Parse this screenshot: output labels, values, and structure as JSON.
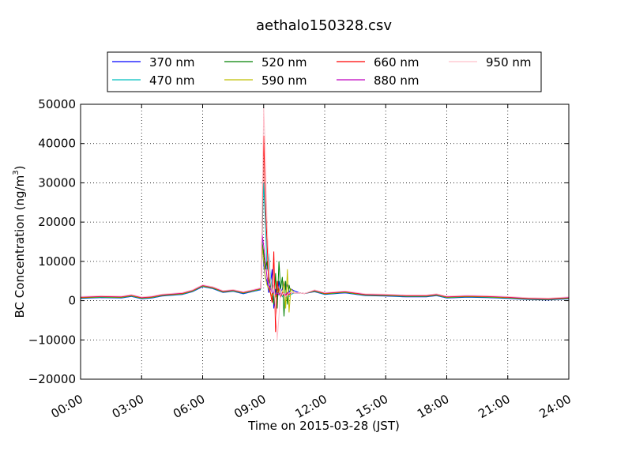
{
  "chart_data": {
    "type": "line",
    "title": "aethalo150328.csv",
    "xlabel": "Time on 2015-03-28 (JST)",
    "ylabel_main": "BC Concentration (ng/m",
    "ylabel_sup": "3",
    "ylabel_close": ")",
    "xlim": [
      "00:00",
      "24:00"
    ],
    "ylim": [
      -20000,
      50000
    ],
    "x_ticks": [
      "00:00",
      "03:00",
      "06:00",
      "09:00",
      "12:00",
      "15:00",
      "18:00",
      "21:00",
      "24:00"
    ],
    "y_ticks": [
      "50000",
      "40000",
      "30000",
      "20000",
      "10000",
      "0",
      "−10000",
      "−20000"
    ],
    "grid": true,
    "legend_placement": "top",
    "baseline_x": [
      "00:00",
      "01:00",
      "02:00",
      "02:30",
      "03:00",
      "03:30",
      "04:00",
      "05:00",
      "05:30",
      "06:00",
      "06:30",
      "07:00",
      "07:30",
      "08:00",
      "08:30",
      "08:50",
      "11:00",
      "11:30",
      "12:00",
      "12:30",
      "13:00",
      "14:00",
      "15:00",
      "16:00",
      "17:00",
      "17:30",
      "18:00",
      "19:00",
      "20:00",
      "21:00",
      "22:00",
      "23:00",
      "24:00"
    ],
    "baseline_y": [
      800,
      1000,
      900,
      1300,
      700,
      900,
      1400,
      1800,
      2500,
      3800,
      3300,
      2300,
      2600,
      2000,
      2600,
      3000,
      1800,
      2500,
      1800,
      2000,
      2200,
      1500,
      1400,
      1200,
      1200,
      1500,
      900,
      1100,
      1000,
      800,
      500,
      400,
      700
    ],
    "series": [
      {
        "name": "370 nm",
        "color": "#0000ff",
        "spike_x": [
          "08:52",
          "08:55",
          "09:00",
          "09:05",
          "09:10",
          "09:15",
          "09:20",
          "09:25",
          "09:30",
          "09:35",
          "09:40",
          "09:45",
          "09:50",
          "09:55",
          "10:00",
          "10:05",
          "10:10",
          "10:15",
          "10:20",
          "10:30",
          "10:45",
          "11:00"
        ],
        "spike_y": [
          3500,
          16000,
          9000,
          6000,
          5000,
          2000,
          4000,
          8000,
          -2000,
          3000,
          1000,
          5000,
          2000,
          3000,
          5000,
          3000,
          4000,
          2000,
          3000,
          2500,
          2000,
          1800
        ]
      },
      {
        "name": "470 nm",
        "color": "#00bfbf",
        "spike_x": [
          "08:52",
          "08:55",
          "09:00",
          "09:05",
          "09:10",
          "09:15",
          "09:20",
          "09:25",
          "09:30",
          "09:35",
          "09:40",
          "09:45",
          "09:50",
          "09:55",
          "10:00",
          "10:05",
          "10:10",
          "10:15",
          "10:20",
          "10:30",
          "10:45",
          "11:00"
        ],
        "spike_y": [
          3500,
          16000,
          30000,
          20000,
          8000,
          12000,
          6000,
          3000,
          500,
          2000,
          0,
          3000,
          2000,
          1000,
          1500,
          1000,
          2000,
          1000,
          1500,
          2000,
          2000,
          1800
        ]
      },
      {
        "name": "520 nm",
        "color": "#008000",
        "spike_x": [
          "08:52",
          "08:55",
          "09:00",
          "09:05",
          "09:10",
          "09:15",
          "09:20",
          "09:25",
          "09:30",
          "09:35",
          "09:40",
          "09:45",
          "09:50",
          "09:55",
          "10:00",
          "10:05",
          "10:10",
          "10:15",
          "10:20",
          "10:30",
          "10:45",
          "11:00"
        ],
        "spike_y": [
          3500,
          15000,
          12000,
          8000,
          10000,
          6000,
          4000,
          2000,
          -1000,
          7000,
          -2000,
          10000,
          3000,
          6000,
          -4000,
          5000,
          -1000,
          4000,
          2000,
          2000,
          2000,
          1800
        ]
      },
      {
        "name": "590 nm",
        "color": "#bfbf00",
        "spike_x": [
          "08:52",
          "08:55",
          "09:00",
          "09:05",
          "09:10",
          "09:15",
          "09:20",
          "09:25",
          "09:30",
          "09:35",
          "09:40",
          "09:45",
          "09:50",
          "09:55",
          "10:00",
          "10:05",
          "10:10",
          "10:15",
          "10:20",
          "10:30",
          "10:45",
          "11:00"
        ],
        "spike_y": [
          3500,
          14000,
          10000,
          6000,
          4000,
          3000,
          2000,
          1000,
          2000,
          1000,
          2000,
          3000,
          2000,
          1500,
          5000,
          -2000,
          8000,
          -3000,
          3000,
          2000,
          2000,
          1800
        ]
      },
      {
        "name": "660 nm",
        "color": "#ff0000",
        "spike_x": [
          "08:52",
          "08:55",
          "09:00",
          "09:05",
          "09:10",
          "09:15",
          "09:20",
          "09:25",
          "09:30",
          "09:35",
          "09:40",
          "09:45",
          "09:50",
          "09:55",
          "10:00",
          "10:05",
          "10:10",
          "10:15",
          "10:20",
          "10:30",
          "10:45",
          "11:00"
        ],
        "spike_y": [
          3500,
          17000,
          42000,
          25000,
          15000,
          4000,
          2000,
          -500,
          12500,
          -8000,
          5000,
          2000,
          1000,
          2000,
          1500,
          1000,
          2000,
          1500,
          2000,
          2000,
          2000,
          1800
        ]
      },
      {
        "name": "880 nm",
        "color": "#bf00bf",
        "spike_x": [
          "08:52",
          "08:55",
          "09:00",
          "09:05",
          "09:10",
          "09:15",
          "09:20",
          "09:25",
          "09:30",
          "09:35",
          "09:40",
          "09:45",
          "09:50",
          "09:55",
          "10:00",
          "10:05",
          "10:10",
          "10:15",
          "10:20",
          "10:30",
          "10:45",
          "11:00"
        ],
        "spike_y": [
          3500,
          17000,
          14000,
          10000,
          6000,
          4000,
          3000,
          2000,
          2000,
          1500,
          2000,
          1500,
          2000,
          1500,
          2000,
          1500,
          2000,
          2000,
          2000,
          2000,
          2000,
          1800
        ]
      },
      {
        "name": "950 nm",
        "color": "#ffc0cb",
        "spike_x": [
          "08:52",
          "08:55",
          "09:00",
          "09:05",
          "09:10",
          "09:15",
          "09:20",
          "09:25",
          "09:30",
          "09:35",
          "09:40",
          "09:45",
          "09:50",
          "09:55",
          "10:00",
          "10:05",
          "10:10",
          "10:15",
          "10:20",
          "10:30",
          "10:45",
          "11:00"
        ],
        "spike_y": [
          3500,
          20000,
          49000,
          38000,
          20000,
          10000,
          5000,
          2000,
          4000,
          -2000,
          -10000,
          -4000,
          3000,
          1500,
          2000,
          1000,
          1500,
          2000,
          2000,
          2000,
          2000,
          1800
        ]
      }
    ]
  }
}
